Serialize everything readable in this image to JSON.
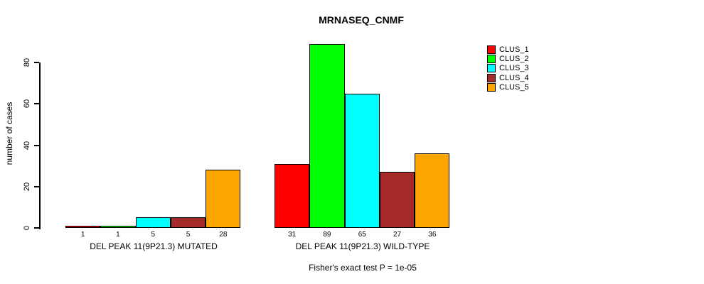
{
  "title": "MRNASEQ_CNMF",
  "y_axis": {
    "label": "number of cases"
  },
  "footnote": "Fisher's exact test P = 1e-05",
  "legend": {
    "items": [
      {
        "label": "CLUS_1",
        "color": "#FF0000"
      },
      {
        "label": "CLUS_2",
        "color": "#00FF00"
      },
      {
        "label": "CLUS_3",
        "color": "#00FFFF"
      },
      {
        "label": "CLUS_4",
        "color": "#A52A2A"
      },
      {
        "label": "CLUS_5",
        "color": "#FFA500"
      }
    ]
  },
  "chart_data": {
    "type": "bar",
    "title": "MRNASEQ_CNMF",
    "xlabel": "",
    "ylabel": "number of cases",
    "ylim": [
      0,
      89
    ],
    "yticks": [
      0,
      20,
      40,
      60,
      80
    ],
    "grid": false,
    "legend_position": "top-right",
    "categories": [
      "DEL PEAK 11(9P21.3) MUTATED",
      "DEL PEAK 11(9P21.3) WILD-TYPE"
    ],
    "series": [
      {
        "name": "CLUS_1",
        "color": "#FF0000",
        "values": [
          1,
          31
        ]
      },
      {
        "name": "CLUS_2",
        "color": "#00FF00",
        "values": [
          1,
          89
        ]
      },
      {
        "name": "CLUS_3",
        "color": "#00FFFF",
        "values": [
          5,
          65
        ]
      },
      {
        "name": "CLUS_4",
        "color": "#A52A2A",
        "values": [
          5,
          27
        ]
      },
      {
        "name": "CLUS_5",
        "color": "#FFA500",
        "values": [
          28,
          36
        ]
      }
    ],
    "bar_value_labels": [
      [
        1,
        1,
        5,
        5,
        28
      ],
      [
        31,
        89,
        65,
        27,
        36
      ]
    ],
    "annotation": "Fisher's exact test P = 1e-05"
  }
}
